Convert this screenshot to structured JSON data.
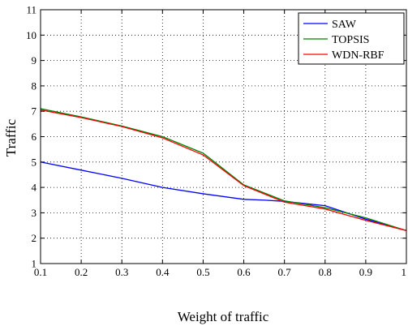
{
  "chart_data": {
    "type": "line",
    "title": "",
    "xlabel": "Weight of traffic",
    "ylabel": "Traffic",
    "xlim": [
      0.1,
      1
    ],
    "ylim": [
      1,
      11
    ],
    "x_ticks": [
      "0.1",
      "0.2",
      "0.3",
      "0.4",
      "0.5",
      "0.6",
      "0.7",
      "0.8",
      "0.9",
      "1"
    ],
    "y_ticks": [
      "1",
      "2",
      "3",
      "4",
      "5",
      "6",
      "7",
      "8",
      "9",
      "10",
      "11"
    ],
    "grid": true,
    "legend_position": "top-right",
    "series": [
      {
        "name": "SAW",
        "color": "#0000ff",
        "x": [
          0.1,
          0.2,
          0.3,
          0.4,
          0.5,
          0.6,
          0.65,
          0.7,
          0.8,
          0.9,
          1.0
        ],
        "y": [
          5.0,
          4.68,
          4.36,
          4.0,
          3.75,
          3.53,
          3.5,
          3.45,
          3.28,
          2.75,
          2.3
        ]
      },
      {
        "name": "TOPSIS",
        "color": "#008000",
        "x": [
          0.1,
          0.2,
          0.3,
          0.4,
          0.5,
          0.6,
          0.7,
          0.8,
          0.9,
          1.0
        ],
        "y": [
          7.1,
          6.78,
          6.42,
          6.0,
          5.35,
          4.1,
          3.47,
          3.2,
          2.8,
          2.3
        ]
      },
      {
        "name": "WDN-RBF",
        "color": "#ff0000",
        "x": [
          0.1,
          0.2,
          0.3,
          0.4,
          0.5,
          0.6,
          0.7,
          0.8,
          0.9,
          1.0
        ],
        "y": [
          7.05,
          6.75,
          6.4,
          5.95,
          5.28,
          4.07,
          3.42,
          3.15,
          2.7,
          2.3
        ]
      }
    ]
  }
}
